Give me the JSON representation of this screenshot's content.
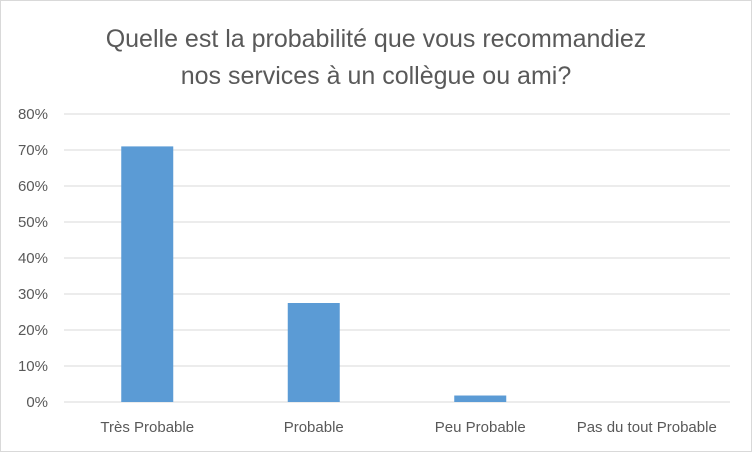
{
  "chart_data": {
    "type": "bar",
    "title_lines": [
      "Quelle est la probabilité que vous recommandiez",
      "nos services à un collègue ou ami?"
    ],
    "categories": [
      "Très Probable",
      "Probable",
      "Peu Probable",
      "Pas du tout Probable"
    ],
    "values": [
      0.71,
      0.275,
      0.018,
      0.0
    ],
    "yticks": [
      "0%",
      "10%",
      "20%",
      "30%",
      "40%",
      "50%",
      "60%",
      "70%",
      "80%"
    ],
    "ylim": [
      0,
      0.8
    ],
    "grid": true,
    "legend": "none",
    "bar_color": "#5b9bd5",
    "grid_color": "#d9d9d9",
    "text_color": "#595959"
  }
}
